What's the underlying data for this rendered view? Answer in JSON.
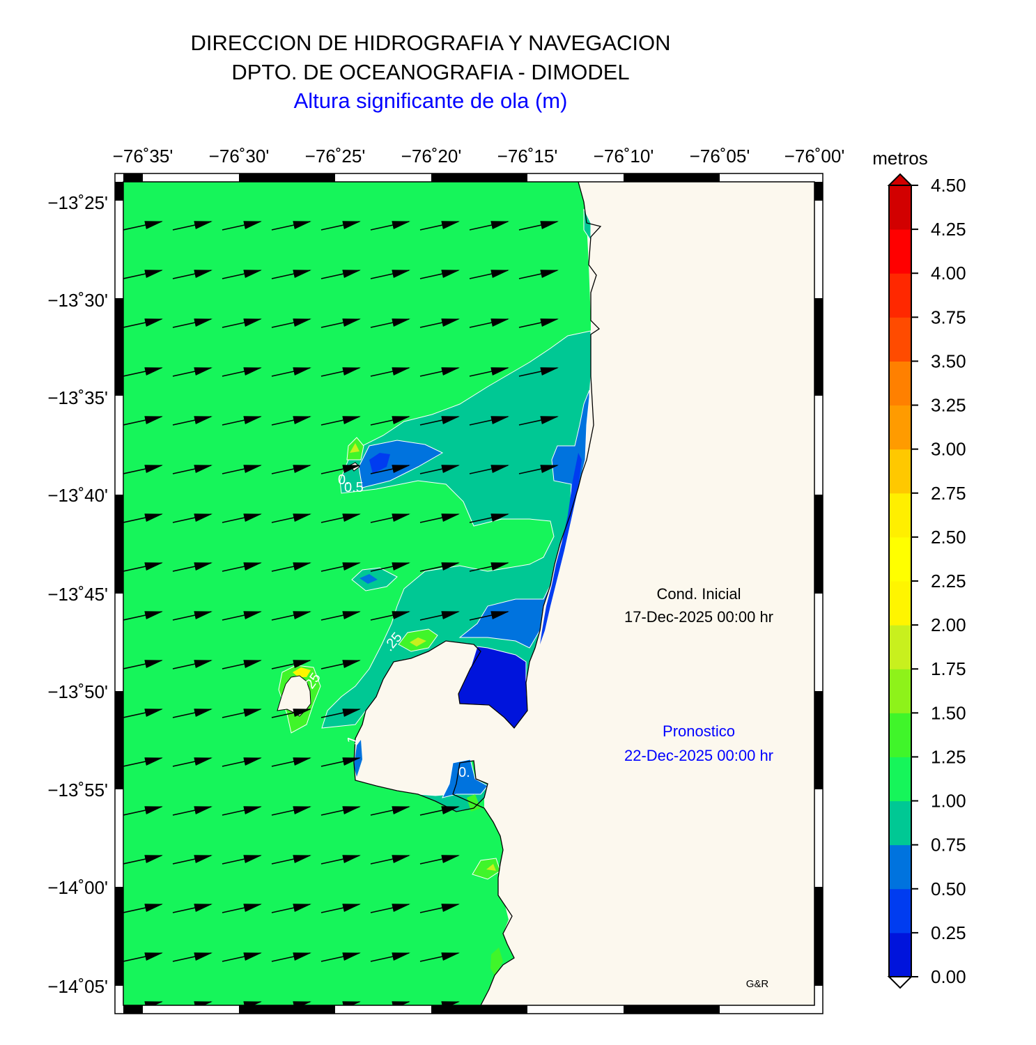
{
  "header": {
    "line1": "DIRECCION DE HIDROGRAFIA Y NAVEGACION",
    "line2": "DPTO. DE OCEANOGRAFIA - DIMODEL",
    "subtitle": "Altura significante de ola (m)"
  },
  "map": {
    "lon_ticks": [
      "−76˚35'",
      "−76˚30'",
      "−76˚25'",
      "−76˚20'",
      "−76˚15'",
      "−76˚10'",
      "−76˚05'",
      "−76˚00'"
    ],
    "lat_ticks": [
      "−13˚25'",
      "−13˚30'",
      "−13˚35'",
      "−13˚40'",
      "−13˚45'",
      "−13˚50'",
      "−13˚55'",
      "−14˚00'",
      "−14˚05'"
    ],
    "contour_labels": [
      "0.5",
      "0.",
      ".25",
      "25",
      "0.",
      "1"
    ],
    "initial_label": "Cond. Inicial",
    "initial_date": "17-Dec-2025 00:00 hr",
    "forecast_label": "Pronostico",
    "forecast_date": "22-Dec-2025 00:00 hr",
    "credit": "G&R",
    "colors": {
      "land": "#fcf8ee",
      "sea_1_00_1_25": "#16f55a",
      "sea_0_75_1_00": "#00c894",
      "sea_0_50_0_75": "#0073de",
      "sea_0_25_0_50": "#003cf0",
      "sea_0_00_0_25": "#0014dc",
      "arrow": "#000000"
    }
  },
  "colorbar": {
    "unit": "metros",
    "labels": [
      "4.50",
      "4.25",
      "4.00",
      "3.75",
      "3.50",
      "3.25",
      "3.00",
      "2.75",
      "2.50",
      "2.25",
      "2.00",
      "1.75",
      "1.50",
      "1.25",
      "1.00",
      "0.75",
      "0.50",
      "0.25",
      "0.00"
    ],
    "colors": [
      "#0014dc",
      "#003cf0",
      "#0073de",
      "#00c894",
      "#16f55a",
      "#40f52a",
      "#8ef21a",
      "#c8f01e",
      "#fff500",
      "#ffff00",
      "#ffef00",
      "#ffc800",
      "#ff9b00",
      "#ff8000",
      "#ff4b00",
      "#ff2800",
      "#ff0000",
      "#d20000"
    ],
    "overflow_color": "#d20000"
  }
}
